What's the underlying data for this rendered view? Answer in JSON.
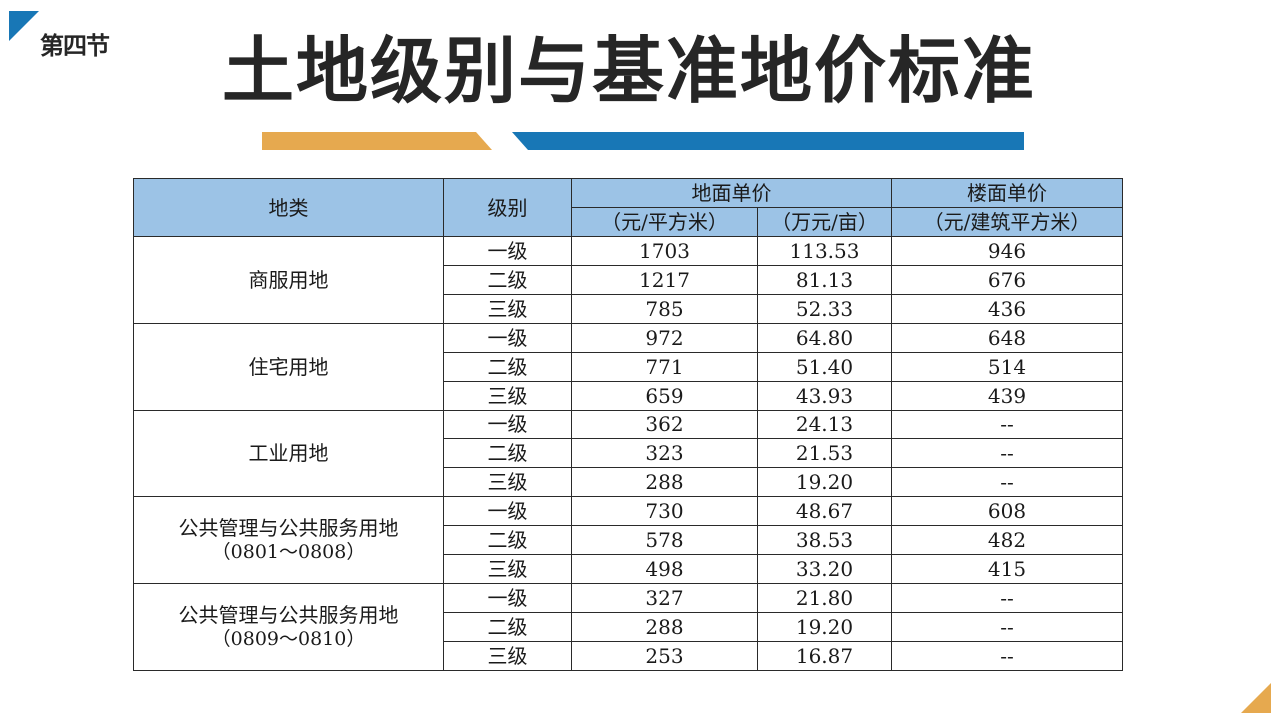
{
  "section_label": "第四节",
  "title": "土地级别与基准地价标准",
  "table": {
    "header": {
      "land_type": "地类",
      "grade": "级别",
      "land_unit_price": "地面单价",
      "floor_unit_price": "楼面单价",
      "unit_yuan_sqm": "（元/平方米）",
      "unit_wan_mu": "（万元/亩）",
      "unit_yuan_floor": "（元/建筑平方米）"
    },
    "groups": [
      {
        "name": "商服用地",
        "sub": "",
        "rows": [
          {
            "grade": "一级",
            "yuan_sqm": "1703",
            "wan_mu": "113.53",
            "floor": "946"
          },
          {
            "grade": "二级",
            "yuan_sqm": "1217",
            "wan_mu": "81.13",
            "floor": "676"
          },
          {
            "grade": "三级",
            "yuan_sqm": "785",
            "wan_mu": "52.33",
            "floor": "436"
          }
        ]
      },
      {
        "name": "住宅用地",
        "sub": "",
        "rows": [
          {
            "grade": "一级",
            "yuan_sqm": "972",
            "wan_mu": "64.80",
            "floor": "648"
          },
          {
            "grade": "二级",
            "yuan_sqm": "771",
            "wan_mu": "51.40",
            "floor": "514"
          },
          {
            "grade": "三级",
            "yuan_sqm": "659",
            "wan_mu": "43.93",
            "floor": "439"
          }
        ]
      },
      {
        "name": "工业用地",
        "sub": "",
        "rows": [
          {
            "grade": "一级",
            "yuan_sqm": "362",
            "wan_mu": "24.13",
            "floor": "--"
          },
          {
            "grade": "二级",
            "yuan_sqm": "323",
            "wan_mu": "21.53",
            "floor": "--"
          },
          {
            "grade": "三级",
            "yuan_sqm": "288",
            "wan_mu": "19.20",
            "floor": "--"
          }
        ]
      },
      {
        "name": "公共管理与公共服务用地",
        "sub": "（0801～0808）",
        "rows": [
          {
            "grade": "一级",
            "yuan_sqm": "730",
            "wan_mu": "48.67",
            "floor": "608"
          },
          {
            "grade": "二级",
            "yuan_sqm": "578",
            "wan_mu": "38.53",
            "floor": "482"
          },
          {
            "grade": "三级",
            "yuan_sqm": "498",
            "wan_mu": "33.20",
            "floor": "415"
          }
        ]
      },
      {
        "name": "公共管理与公共服务用地",
        "sub": "（0809～0810）",
        "rows": [
          {
            "grade": "一级",
            "yuan_sqm": "327",
            "wan_mu": "21.80",
            "floor": "--"
          },
          {
            "grade": "二级",
            "yuan_sqm": "288",
            "wan_mu": "19.20",
            "floor": "--"
          },
          {
            "grade": "三级",
            "yuan_sqm": "253",
            "wan_mu": "16.87",
            "floor": "--"
          }
        ]
      }
    ]
  }
}
